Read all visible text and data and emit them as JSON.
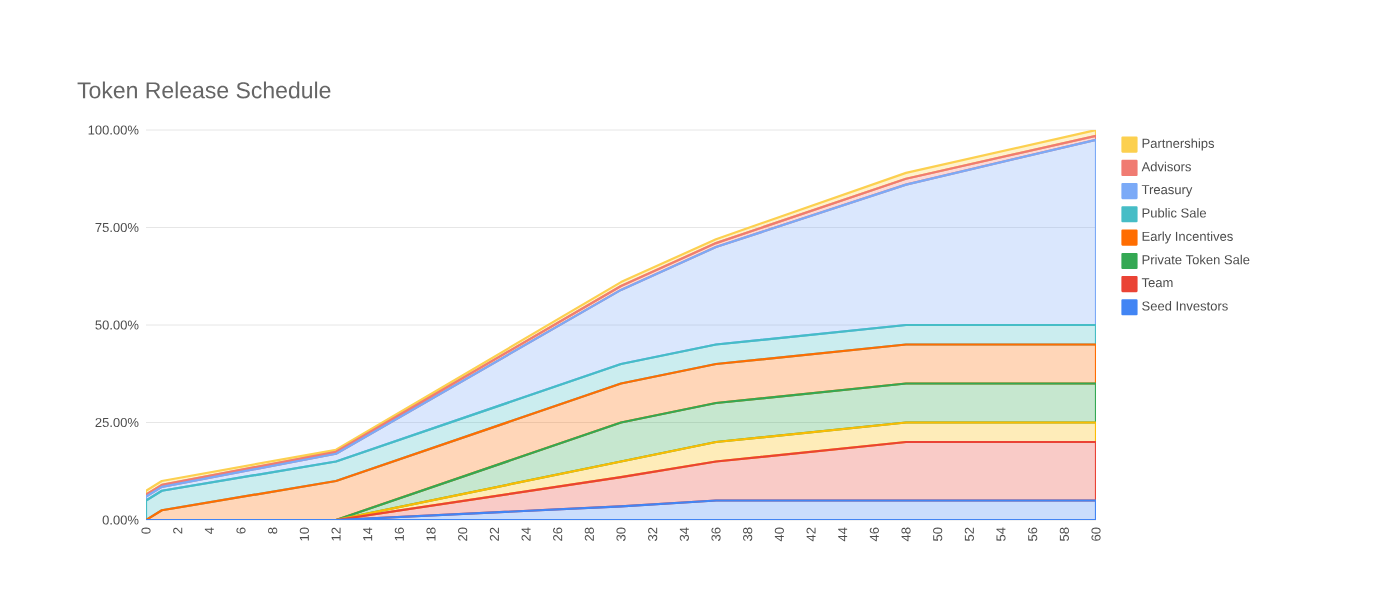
{
  "chart_data": {
    "type": "area",
    "stacked": true,
    "title": "Token Release Schedule",
    "x": [
      0,
      1,
      12,
      30,
      36,
      48,
      60
    ],
    "series": [
      {
        "name": "Seed Investors",
        "color": "#4285f4",
        "values": [
          0,
          0,
          0,
          3.5,
          5,
          5,
          5
        ]
      },
      {
        "name": "Team",
        "color": "#ea4335",
        "values": [
          0,
          0,
          0,
          7.5,
          10,
          15,
          15
        ]
      },
      {
        "color": "#fbbc04",
        "values": [
          0,
          0,
          0,
          4,
          5,
          5,
          5
        ]
      },
      {
        "name": "Private Token Sale",
        "color": "#34a853",
        "values": [
          0,
          0,
          0,
          10,
          10,
          10,
          10
        ]
      },
      {
        "name": "Early Incentives",
        "color": "#ff6d01",
        "values": [
          0,
          2.5,
          10,
          10,
          10,
          10,
          10
        ]
      },
      {
        "name": "Public Sale",
        "color": "#46bdc6",
        "values": [
          5,
          5,
          5,
          5,
          5,
          5,
          5
        ]
      },
      {
        "name": "Treasury",
        "color": "#7baaf7",
        "values": [
          1,
          1,
          2,
          19,
          25,
          36,
          47.5
        ]
      },
      {
        "name": "Advisors",
        "color": "#f07b72",
        "values": [
          0.5,
          0.5,
          0.5,
          1,
          1,
          1.5,
          1
        ]
      },
      {
        "name": "Partnerships",
        "color": "#fcd04f",
        "values": [
          1,
          1,
          0.5,
          1,
          1,
          1.5,
          1.5
        ]
      }
    ],
    "xlim": [
      0,
      60
    ],
    "xticks": [
      0,
      2,
      4,
      6,
      8,
      10,
      12,
      14,
      16,
      18,
      20,
      22,
      24,
      26,
      28,
      30,
      32,
      34,
      36,
      38,
      40,
      42,
      44,
      46,
      48,
      50,
      52,
      54,
      56,
      58,
      60
    ],
    "ylim": [
      0,
      100
    ],
    "yticks": [
      {
        "value": 0,
        "label": "0.00%"
      },
      {
        "value": 25,
        "label": "25.00%"
      },
      {
        "value": 50,
        "label": "50.00%"
      },
      {
        "value": 75,
        "label": "75.00%"
      },
      {
        "value": 100,
        "label": "100.00%"
      }
    ],
    "grid": "y",
    "legend": "right"
  }
}
